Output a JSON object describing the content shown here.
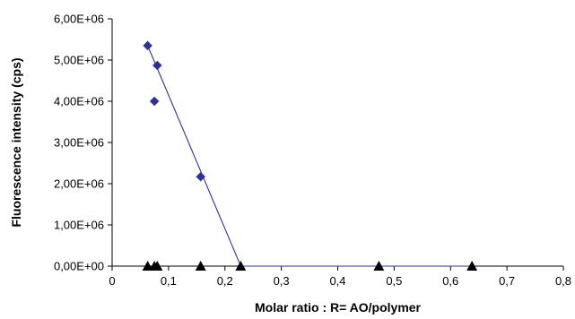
{
  "chart_data": {
    "type": "scatter",
    "title": "",
    "xlabel": "Molar ratio : R= AO/polymer",
    "ylabel": "Fluorescence intensity (cps)",
    "xlim": [
      0,
      0.8
    ],
    "ylim": [
      0,
      6000000
    ],
    "grid": false,
    "x_ticks": [
      "0",
      "0,1",
      "0,2",
      "0,3",
      "0,4",
      "0,5",
      "0,6",
      "0,7",
      "0,8"
    ],
    "y_ticks": [
      "0,00E+00",
      "1,00E+06",
      "2,00E+06",
      "3,00E+06",
      "4,00E+06",
      "5,00E+06",
      "6,00E+06"
    ],
    "series": [
      {
        "marker": "diamond",
        "color": "#2E3192",
        "points": [
          {
            "x": 0.063,
            "y": 5350000
          },
          {
            "x": 0.075,
            "y": 4000000
          },
          {
            "x": 0.08,
            "y": 4870000
          },
          {
            "x": 0.157,
            "y": 2170000
          }
        ]
      },
      {
        "marker": "triangle",
        "color": "#000000",
        "points": [
          {
            "x": 0.063,
            "y": 0
          },
          {
            "x": 0.075,
            "y": 0
          },
          {
            "x": 0.08,
            "y": 0
          },
          {
            "x": 0.157,
            "y": 0
          },
          {
            "x": 0.228,
            "y": 0
          },
          {
            "x": 0.473,
            "y": 0
          },
          {
            "x": 0.638,
            "y": 0
          }
        ]
      }
    ],
    "fit_lines": [
      {
        "color": "#2E3192",
        "points": [
          {
            "x": 0.063,
            "y": 5350000
          },
          {
            "x": 0.228,
            "y": 0
          },
          {
            "x": 0.64,
            "y": 0
          }
        ]
      }
    ]
  }
}
